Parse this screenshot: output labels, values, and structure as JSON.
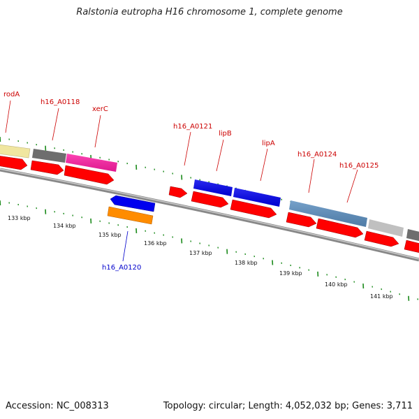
{
  "header": {
    "title": "Ralstonia eutropha H16 chromosome 1, complete genome"
  },
  "footer": {
    "accession": "Accession: NC_008313",
    "topology": "Topology: circular; Length: 4,052,032 bp; Genes: 3,711"
  },
  "gene_labels": [
    {
      "text": "rodA",
      "strand": "plus"
    },
    {
      "text": "h16_A0118",
      "strand": "plus"
    },
    {
      "text": "xerC",
      "strand": "plus"
    },
    {
      "text": "h16_A0121",
      "strand": "plus"
    },
    {
      "text": "lipB",
      "strand": "plus"
    },
    {
      "text": "lipA",
      "strand": "plus"
    },
    {
      "text": "h16_A0124",
      "strand": "plus"
    },
    {
      "text": "h16_A0125",
      "strand": "plus"
    },
    {
      "text": "h16_A0120",
      "strand": "minus"
    }
  ],
  "scale_labels": [
    "133 kbp",
    "134 kbp",
    "135 kbp",
    "136 kbp",
    "137 kbp",
    "138 kbp",
    "139 kbp",
    "140 kbp",
    "141 kbp"
  ],
  "colors": {
    "cds": "#ff0000",
    "backbone": "#888888",
    "tick": "#1a8a1a",
    "label_plus": "#cc0000",
    "label_minus": "#0000cc",
    "cog_yellow": "#f0e6a0",
    "cog_darkgray": "#6e6e6e",
    "cog_magenta": "#ff1fa5",
    "cog_blue": "#0000ee",
    "cog_steelblue": "#5b8fc0",
    "cog_lightgray": "#c0c0c0",
    "cog_orange": "#ff8c00"
  }
}
